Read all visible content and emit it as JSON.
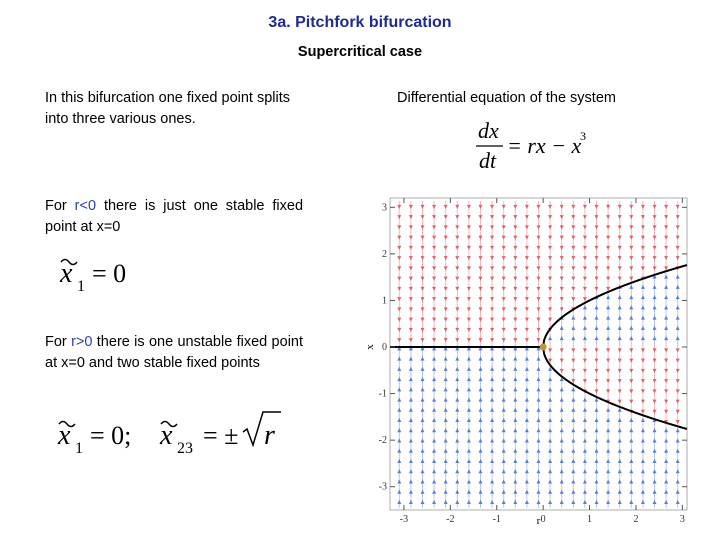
{
  "title": "3a. Pitchfork bifurcation",
  "subtitle": "Supercritical case",
  "intro": "In this bifurcation one fixed point splits into three various ones.",
  "case1": {
    "lead": "For",
    "cond": "r<0",
    "text": "there is just one stable fixed point at x=0"
  },
  "case2": {
    "lead": "For",
    "cond": "r>0",
    "text": "there is one unstable fixed point at x=0 and two stable fixed points"
  },
  "eq1": {
    "var": "x",
    "sub": "1",
    "rhs": "= 0"
  },
  "eq2": {
    "var": "x",
    "sub": "1",
    "rhs": "= 0;"
  },
  "eq3": {
    "var": "x",
    "sub": "23",
    "rhs": "= ±",
    "radicand": "r"
  },
  "ode_heading": "Differential equation of the system",
  "ode": {
    "num": "dx",
    "den": "dt",
    "rhs": "= rx − x",
    "power": "3"
  },
  "plot": {
    "xlabel": "r",
    "ylabel": "x",
    "xlim": [
      -3.3,
      3.1
    ],
    "ylim": [
      -3.5,
      3.2
    ],
    "xticks": [
      -3,
      -2,
      -1,
      0,
      1,
      2,
      3
    ],
    "yticks": [
      -3,
      -2,
      -1,
      0,
      1,
      2,
      3
    ]
  }
}
